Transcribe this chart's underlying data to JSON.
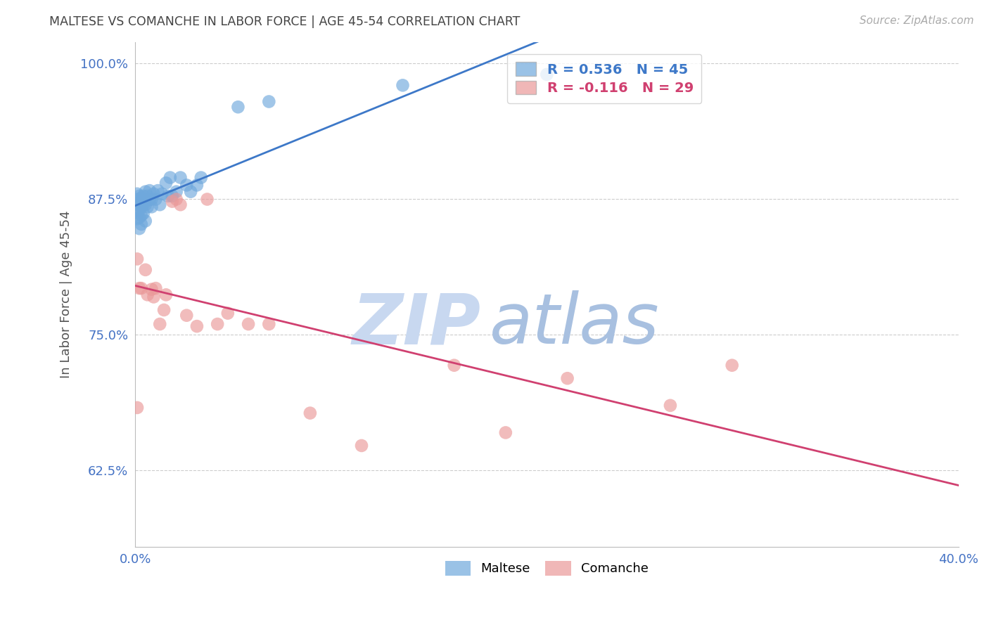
{
  "title": "MALTESE VS COMANCHE IN LABOR FORCE | AGE 45-54 CORRELATION CHART",
  "source_text": "Source: ZipAtlas.com",
  "ylabel": "In Labor Force | Age 45-54",
  "xlim": [
    0.0,
    0.4
  ],
  "ylim": [
    0.555,
    1.02
  ],
  "xticks": [
    0.0,
    0.05,
    0.1,
    0.15,
    0.2,
    0.25,
    0.3,
    0.35,
    0.4
  ],
  "xticklabels": [
    "0.0%",
    "",
    "",
    "",
    "",
    "",
    "",
    "",
    "40.0%"
  ],
  "yticks": [
    0.625,
    0.75,
    0.875,
    1.0
  ],
  "yticklabels": [
    "62.5%",
    "75.0%",
    "87.5%",
    "100.0%"
  ],
  "maltese_R": 0.536,
  "maltese_N": 45,
  "comanche_R": -0.116,
  "comanche_N": 29,
  "maltese_color": "#6fa8dc",
  "comanche_color": "#ea9999",
  "maltese_line_color": "#3d78c8",
  "comanche_line_color": "#d04070",
  "background_color": "#ffffff",
  "watermark_zip": "ZIP",
  "watermark_atlas": "atlas",
  "watermark_color_zip": "#c8d8f0",
  "watermark_color_atlas": "#a0b8d8",
  "grid_color": "#cccccc",
  "title_color": "#444444",
  "axis_label_color": "#555555",
  "tick_label_color": "#4472c4",
  "maltese_x": [
    0.001,
    0.001,
    0.001,
    0.001,
    0.001,
    0.002,
    0.002,
    0.002,
    0.002,
    0.002,
    0.003,
    0.003,
    0.003,
    0.003,
    0.004,
    0.004,
    0.004,
    0.005,
    0.005,
    0.005,
    0.006,
    0.006,
    0.007,
    0.007,
    0.008,
    0.008,
    0.009,
    0.01,
    0.011,
    0.012,
    0.013,
    0.015,
    0.016,
    0.017,
    0.018,
    0.02,
    0.022,
    0.025,
    0.027,
    0.03,
    0.032,
    0.05,
    0.065,
    0.13,
    0.2
  ],
  "maltese_y": [
    0.857,
    0.863,
    0.87,
    0.875,
    0.88,
    0.848,
    0.858,
    0.865,
    0.872,
    0.878,
    0.852,
    0.86,
    0.868,
    0.876,
    0.862,
    0.87,
    0.878,
    0.855,
    0.87,
    0.882,
    0.868,
    0.878,
    0.875,
    0.883,
    0.868,
    0.875,
    0.88,
    0.875,
    0.883,
    0.87,
    0.88,
    0.89,
    0.878,
    0.895,
    0.878,
    0.882,
    0.895,
    0.888,
    0.882,
    0.888,
    0.895,
    0.96,
    0.965,
    0.98,
    0.99
  ],
  "comanche_x": [
    0.001,
    0.001,
    0.002,
    0.003,
    0.005,
    0.006,
    0.008,
    0.009,
    0.01,
    0.012,
    0.014,
    0.015,
    0.018,
    0.02,
    0.022,
    0.025,
    0.03,
    0.035,
    0.04,
    0.045,
    0.055,
    0.065,
    0.085,
    0.11,
    0.155,
    0.18,
    0.21,
    0.26,
    0.29
  ],
  "comanche_y": [
    0.82,
    0.683,
    0.793,
    0.793,
    0.81,
    0.787,
    0.792,
    0.785,
    0.793,
    0.76,
    0.773,
    0.787,
    0.873,
    0.875,
    0.87,
    0.768,
    0.758,
    0.875,
    0.76,
    0.77,
    0.76,
    0.76,
    0.678,
    0.648,
    0.722,
    0.66,
    0.71,
    0.685,
    0.722
  ]
}
